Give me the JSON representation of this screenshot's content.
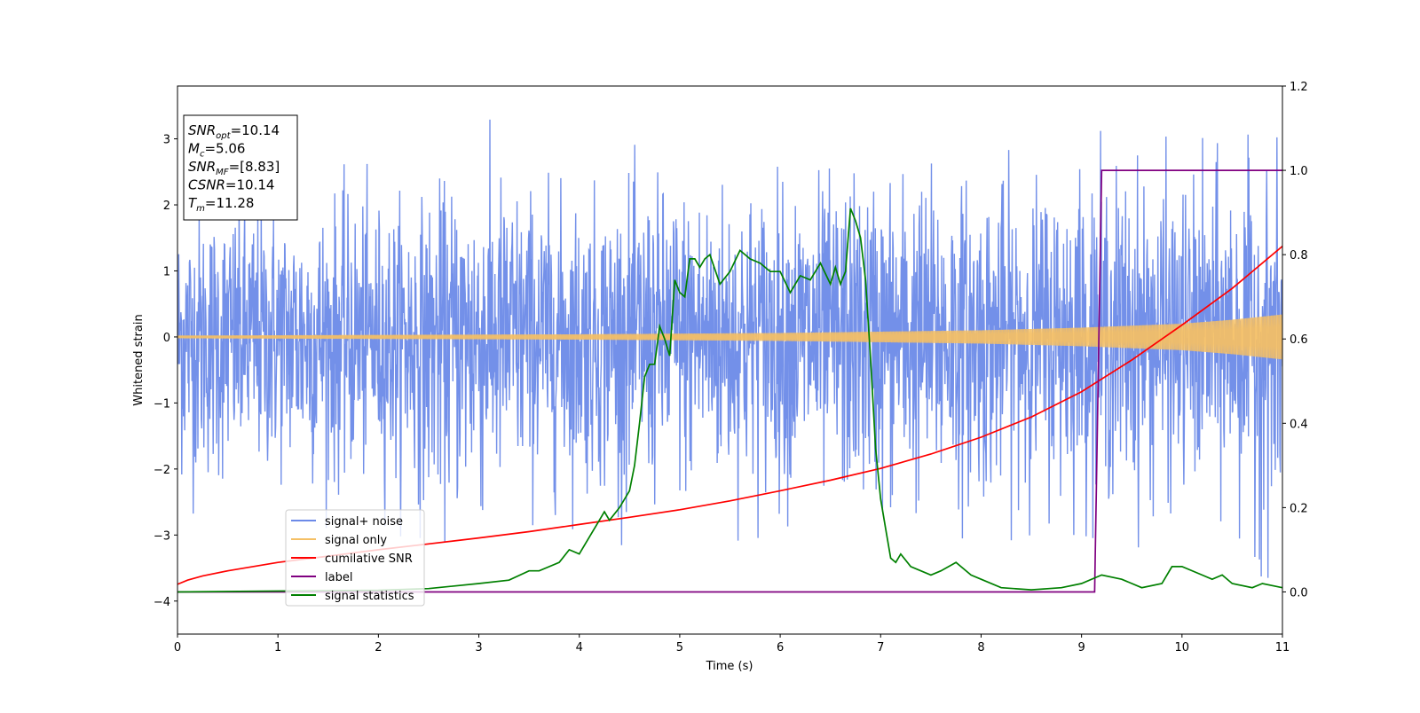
{
  "chart_data": {
    "type": "line",
    "xlabel": "Time (s)",
    "ylabel": "Whitened strain",
    "xlim": [
      0,
      11
    ],
    "ylim": [
      -4.5,
      3.8
    ],
    "y2lim": [
      -0.1,
      1.2
    ],
    "xticks": [
      0,
      1,
      2,
      3,
      4,
      5,
      6,
      7,
      8,
      9,
      10,
      11
    ],
    "yticks": [
      -4,
      -3,
      -2,
      -1,
      0,
      1,
      2,
      3
    ],
    "y2ticks": [
      0.0,
      0.2,
      0.4,
      0.6,
      0.8,
      1.0,
      1.2
    ],
    "grid": false,
    "legend_position": "lower-left",
    "legend": [
      {
        "name": "signal+ noise",
        "color": "#6c8ae8"
      },
      {
        "name": "signal only",
        "color": "#f5c065"
      },
      {
        "name": "cumilative SNR",
        "color": "#ff0000"
      },
      {
        "name": "label",
        "color": "#800080"
      },
      {
        "name": "signal statistics",
        "color": "#008000"
      }
    ],
    "stats_box": [
      {
        "base": "SNR",
        "sub": "opt",
        "value": "=10.14"
      },
      {
        "base": "M",
        "sub": "c",
        "value": "=5.06"
      },
      {
        "base": "SNR",
        "sub": "MF",
        "value": "=[8.83]"
      },
      {
        "base": "CSNR",
        "sub": "",
        "value": "=10.14"
      },
      {
        "base": "T",
        "sub": "m",
        "value": "=11.28"
      }
    ],
    "noise_envelope": {
      "x": [
        0,
        0.5,
        1,
        1.5,
        2,
        2.5,
        3,
        3.5,
        4,
        4.5,
        5,
        5.5,
        6,
        6.5,
        7,
        7.5,
        8,
        8.5,
        9,
        9.5,
        10,
        10.5,
        11
      ],
      "upper": [
        2.5,
        2.6,
        2.6,
        2.7,
        2.6,
        2.7,
        3.4,
        2.9,
        2.7,
        2.9,
        3.0,
        3.0,
        3.0,
        3.0,
        3.2,
        3.2,
        3.0,
        3.0,
        3.4,
        3.2,
        3.0,
        3.2,
        3.0
      ],
      "lower": [
        -2.8,
        -2.9,
        -2.7,
        -2.9,
        -2.8,
        -3.3,
        -3.5,
        -3.0,
        -2.9,
        -3.2,
        -3.1,
        -3.1,
        -3.0,
        -3.3,
        -3.3,
        -3.3,
        -3.2,
        -3.0,
        -3.0,
        -3.2,
        -3.1,
        -3.3,
        -4.2
      ]
    },
    "signal_only_envelope": {
      "x": [
        0,
        2,
        4,
        6,
        8,
        9,
        10,
        10.5,
        11
      ],
      "amplitude": [
        0.02,
        0.03,
        0.04,
        0.06,
        0.1,
        0.14,
        0.2,
        0.26,
        0.34
      ]
    },
    "series": [
      {
        "name": "cumilative SNR",
        "axis": "right",
        "x": [
          0,
          0.1,
          0.25,
          0.5,
          1,
          1.5,
          2,
          2.5,
          3,
          3.5,
          4,
          4.5,
          5,
          5.5,
          6,
          6.5,
          7,
          7.5,
          8,
          8.5,
          9,
          9.5,
          10,
          10.5,
          11
        ],
        "values": [
          0.018,
          0.028,
          0.038,
          0.05,
          0.07,
          0.085,
          0.1,
          0.114,
          0.128,
          0.143,
          0.16,
          0.177,
          0.195,
          0.216,
          0.24,
          0.265,
          0.293,
          0.327,
          0.367,
          0.415,
          0.475,
          0.55,
          0.633,
          0.72,
          0.82
        ]
      },
      {
        "name": "label",
        "axis": "right",
        "x": [
          0,
          9.13,
          9.2,
          11
        ],
        "values": [
          0.0,
          0.0,
          1.0,
          1.0
        ]
      },
      {
        "name": "signal statistics",
        "axis": "right",
        "x": [
          0,
          1,
          2,
          2.5,
          3,
          3.3,
          3.5,
          3.6,
          3.8,
          3.9,
          4.0,
          4.1,
          4.2,
          4.25,
          4.3,
          4.4,
          4.5,
          4.55,
          4.6,
          4.65,
          4.7,
          4.75,
          4.8,
          4.85,
          4.9,
          4.95,
          5.0,
          5.05,
          5.1,
          5.15,
          5.2,
          5.25,
          5.3,
          5.4,
          5.5,
          5.6,
          5.7,
          5.8,
          5.9,
          6.0,
          6.1,
          6.2,
          6.3,
          6.4,
          6.5,
          6.55,
          6.6,
          6.65,
          6.7,
          6.75,
          6.8,
          6.85,
          6.9,
          6.95,
          7.0,
          7.05,
          7.1,
          7.15,
          7.2,
          7.3,
          7.5,
          7.6,
          7.75,
          7.9,
          8.0,
          8.2,
          8.5,
          8.8,
          9.0,
          9.2,
          9.4,
          9.6,
          9.8,
          9.9,
          10.0,
          10.2,
          10.3,
          10.4,
          10.5,
          10.7,
          10.8,
          11.0
        ],
        "values": [
          0.0,
          0.002,
          0.004,
          0.008,
          0.02,
          0.028,
          0.05,
          0.05,
          0.07,
          0.1,
          0.09,
          0.13,
          0.17,
          0.19,
          0.17,
          0.2,
          0.24,
          0.3,
          0.4,
          0.51,
          0.54,
          0.54,
          0.63,
          0.6,
          0.56,
          0.74,
          0.71,
          0.7,
          0.79,
          0.79,
          0.77,
          0.79,
          0.8,
          0.73,
          0.76,
          0.81,
          0.79,
          0.78,
          0.76,
          0.76,
          0.71,
          0.75,
          0.74,
          0.78,
          0.73,
          0.77,
          0.73,
          0.76,
          0.91,
          0.88,
          0.84,
          0.74,
          0.55,
          0.34,
          0.22,
          0.15,
          0.08,
          0.07,
          0.09,
          0.06,
          0.04,
          0.05,
          0.07,
          0.04,
          0.03,
          0.01,
          0.005,
          0.01,
          0.02,
          0.04,
          0.03,
          0.01,
          0.02,
          0.06,
          0.06,
          0.04,
          0.03,
          0.04,
          0.02,
          0.01,
          0.02,
          0.01
        ]
      }
    ]
  }
}
